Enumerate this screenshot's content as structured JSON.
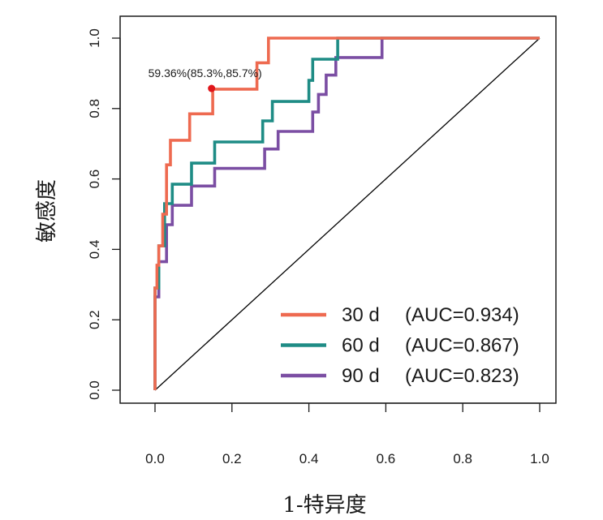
{
  "chart_data": {
    "type": "line",
    "title": "",
    "xlabel": "1-特异度",
    "ylabel": "敏感度",
    "xlim": [
      0,
      1
    ],
    "ylim": [
      0,
      1
    ],
    "x_ticks": [
      "0.0",
      "0.2",
      "0.4",
      "0.6",
      "0.8",
      "1.0"
    ],
    "y_ticks": [
      "0.0",
      "0.2",
      "0.4",
      "0.6",
      "0.8",
      "1.0"
    ],
    "grid": false,
    "legend_position": "bottom-right",
    "reference_line": {
      "x": [
        0,
        1
      ],
      "y": [
        0,
        1
      ],
      "color": "#000000"
    },
    "series": [
      {
        "name": "30 d",
        "auc_label": "(AUC=0.934)",
        "color": "#EE6A50",
        "x": [
          0,
          0,
          0.005,
          0.005,
          0.01,
          0.01,
          0.02,
          0.02,
          0.03,
          0.03,
          0.04,
          0.04,
          0.09,
          0.09,
          0.15,
          0.15,
          0.265,
          0.265,
          0.295,
          0.295,
          0.475,
          1.0
        ],
        "y": [
          0,
          0.29,
          0.29,
          0.355,
          0.355,
          0.41,
          0.41,
          0.5,
          0.5,
          0.64,
          0.64,
          0.71,
          0.71,
          0.785,
          0.785,
          0.855,
          0.855,
          0.93,
          0.93,
          1.0,
          1.0,
          1.0
        ]
      },
      {
        "name": "60 d",
        "auc_label": "(AUC=0.867)",
        "color": "#1E8C85",
        "x": [
          0,
          0,
          0.01,
          0.01,
          0.025,
          0.025,
          0.045,
          0.045,
          0.095,
          0.095,
          0.155,
          0.155,
          0.28,
          0.28,
          0.305,
          0.305,
          0.4,
          0.4,
          0.41,
          0.41,
          0.475,
          0.475,
          1.0
        ],
        "y": [
          0,
          0.29,
          0.29,
          0.41,
          0.41,
          0.53,
          0.53,
          0.585,
          0.585,
          0.645,
          0.645,
          0.705,
          0.705,
          0.765,
          0.765,
          0.82,
          0.82,
          0.88,
          0.88,
          0.94,
          0.94,
          1.0,
          1.0
        ]
      },
      {
        "name": "90 d",
        "auc_label": "(AUC=0.823)",
        "color": "#7B4EA3",
        "x": [
          0,
          0,
          0.01,
          0.01,
          0.03,
          0.03,
          0.045,
          0.045,
          0.095,
          0.095,
          0.155,
          0.155,
          0.285,
          0.285,
          0.32,
          0.32,
          0.41,
          0.41,
          0.425,
          0.425,
          0.445,
          0.445,
          0.47,
          0.47,
          0.59,
          0.59,
          1.0
        ],
        "y": [
          0,
          0.265,
          0.265,
          0.365,
          0.365,
          0.47,
          0.47,
          0.525,
          0.525,
          0.58,
          0.58,
          0.63,
          0.63,
          0.685,
          0.685,
          0.735,
          0.735,
          0.79,
          0.79,
          0.84,
          0.84,
          0.895,
          0.895,
          0.945,
          0.945,
          1.0,
          1.0
        ]
      }
    ],
    "annotation": {
      "text": "59.36%(85.3%,85.7%)",
      "x": 0.147,
      "y": 0.857,
      "color": "#E0161B"
    }
  }
}
